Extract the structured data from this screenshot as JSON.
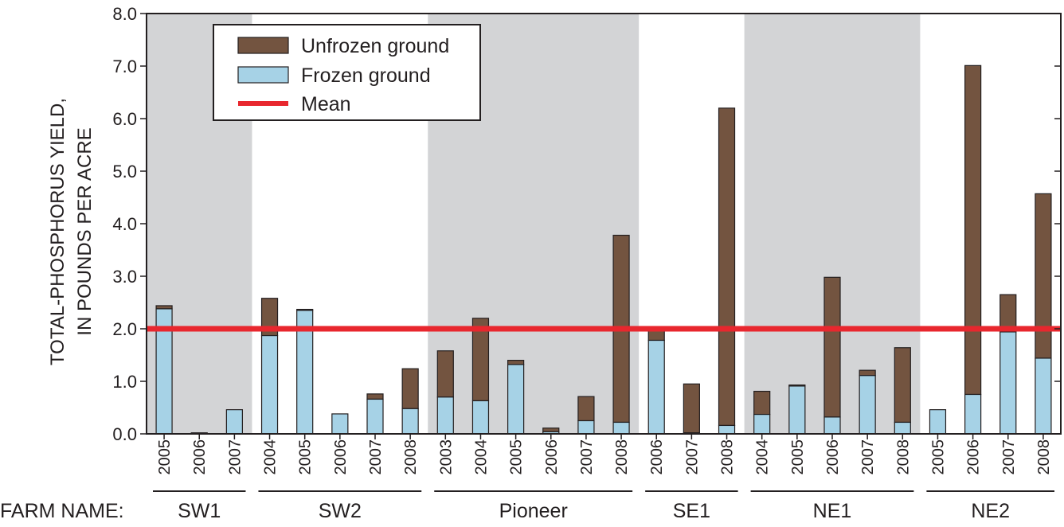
{
  "chart_data": {
    "type": "bar",
    "stacked": true,
    "ylabel_lines": [
      "TOTAL-PHOSPHORUS YIELD,",
      "IN POUNDS PER ACRE"
    ],
    "ylim": [
      0,
      8
    ],
    "yticks": [
      "0.0",
      "1.0",
      "2.0",
      "3.0",
      "4.0",
      "5.0",
      "6.0",
      "7.0",
      "8.0"
    ],
    "group_axis_label": "FARM NAME:",
    "mean": 2.0,
    "legend": {
      "placement": "top-left",
      "items": [
        {
          "key": "unfrozen",
          "label": "Unfrozen ground"
        },
        {
          "key": "frozen",
          "label": "Frozen ground"
        },
        {
          "key": "mean",
          "label": "Mean"
        }
      ]
    },
    "colors": {
      "unfrozen": "#735440",
      "frozen": "#a6d2e6",
      "mean": "#e8272e",
      "shade": "#d3d4d6",
      "axis": "#231f20"
    },
    "groups": [
      {
        "name": "SW1",
        "shaded": true,
        "bars": [
          {
            "year": "2005",
            "frozen": 2.38,
            "unfrozen": 0.06
          },
          {
            "year": "2006",
            "frozen": 0.02,
            "unfrozen": 0.0
          },
          {
            "year": "2007",
            "frozen": 0.46,
            "unfrozen": 0.0
          }
        ]
      },
      {
        "name": "SW2",
        "shaded": false,
        "bars": [
          {
            "year": "2004",
            "frozen": 1.87,
            "unfrozen": 0.71
          },
          {
            "year": "2005",
            "frozen": 2.35,
            "unfrozen": 0.02
          },
          {
            "year": "2006",
            "frozen": 0.38,
            "unfrozen": 0.0
          },
          {
            "year": "2007",
            "frozen": 0.66,
            "unfrozen": 0.1
          },
          {
            "year": "2008",
            "frozen": 0.48,
            "unfrozen": 0.76
          }
        ]
      },
      {
        "name": "Pioneer",
        "shaded": true,
        "bars": [
          {
            "year": "2003",
            "frozen": 0.7,
            "unfrozen": 0.88
          },
          {
            "year": "2004",
            "frozen": 0.63,
            "unfrozen": 1.57
          },
          {
            "year": "2005",
            "frozen": 1.32,
            "unfrozen": 0.08
          },
          {
            "year": "2006",
            "frozen": 0.04,
            "unfrozen": 0.07
          },
          {
            "year": "2007",
            "frozen": 0.25,
            "unfrozen": 0.46
          },
          {
            "year": "2008",
            "frozen": 0.22,
            "unfrozen": 3.56
          }
        ]
      },
      {
        "name": "SE1",
        "shaded": false,
        "bars": [
          {
            "year": "2006",
            "frozen": 1.78,
            "unfrozen": 0.2
          },
          {
            "year": "2007",
            "frozen": 0.02,
            "unfrozen": 0.93
          },
          {
            "year": "2008",
            "frozen": 0.16,
            "unfrozen": 6.04
          }
        ]
      },
      {
        "name": "NE1",
        "shaded": true,
        "bars": [
          {
            "year": "2004",
            "frozen": 0.37,
            "unfrozen": 0.44
          },
          {
            "year": "2005",
            "frozen": 0.91,
            "unfrozen": 0.02
          },
          {
            "year": "2006",
            "frozen": 0.32,
            "unfrozen": 2.66
          },
          {
            "year": "2007",
            "frozen": 1.11,
            "unfrozen": 0.1
          },
          {
            "year": "2008",
            "frozen": 0.22,
            "unfrozen": 1.42
          }
        ]
      },
      {
        "name": "NE2",
        "shaded": false,
        "bars": [
          {
            "year": "2005",
            "frozen": 0.46,
            "unfrozen": 0.0
          },
          {
            "year": "2006",
            "frozen": 0.75,
            "unfrozen": 6.26
          },
          {
            "year": "2007",
            "frozen": 1.94,
            "unfrozen": 0.71
          },
          {
            "year": "2008",
            "frozen": 1.44,
            "unfrozen": 3.13
          }
        ]
      }
    ]
  }
}
